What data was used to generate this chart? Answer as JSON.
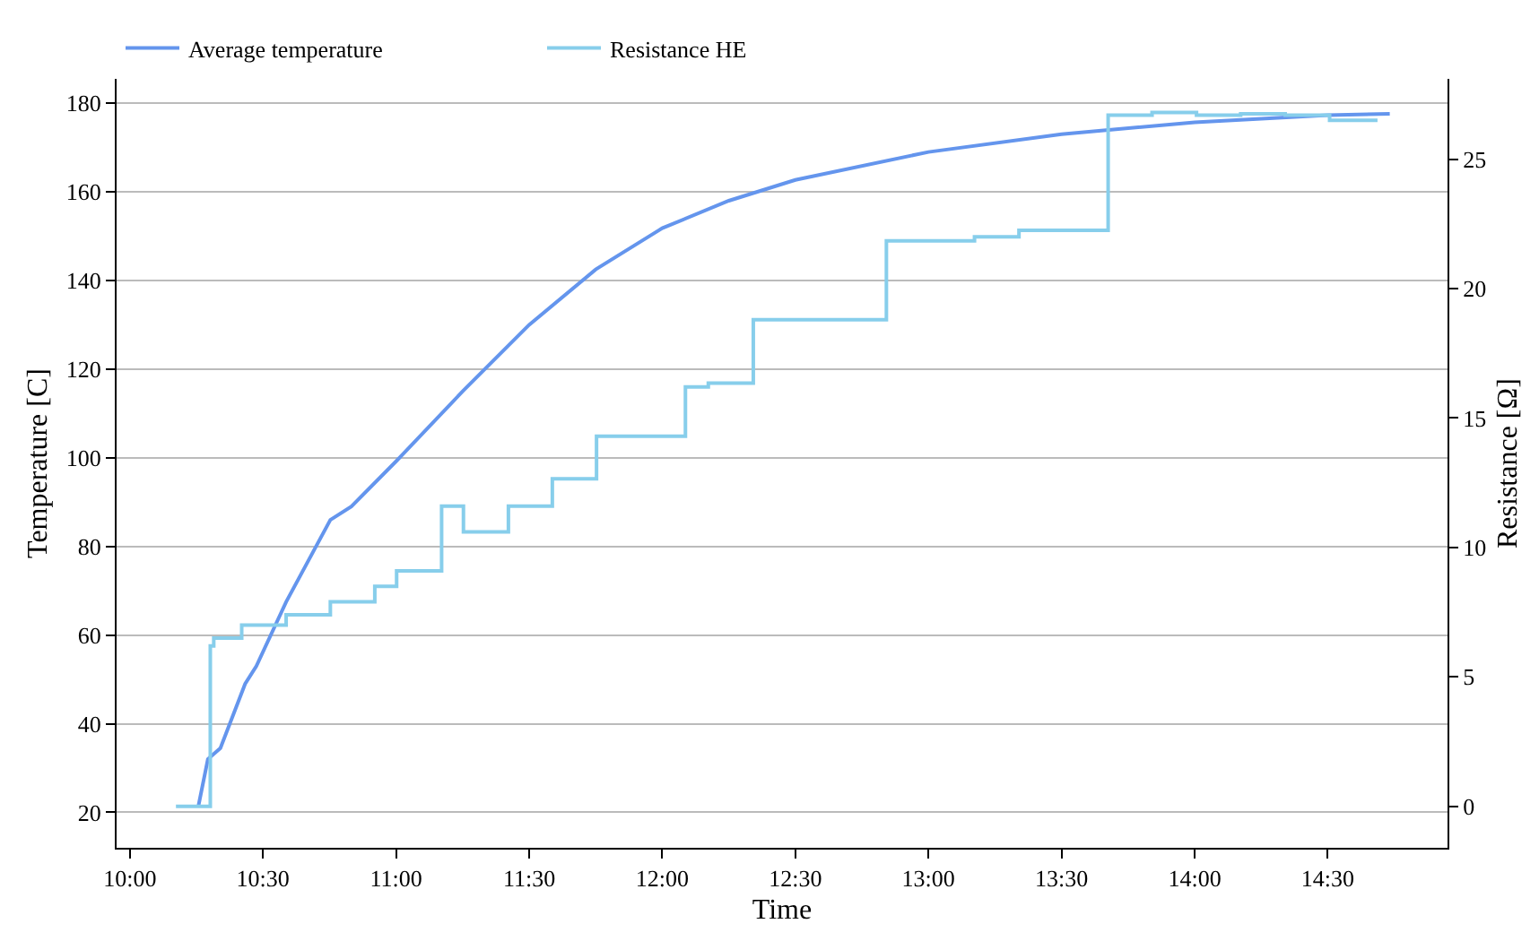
{
  "chart_data": {
    "type": "line",
    "xlabel": "Time",
    "ylabel": "Temperature [C]",
    "y2label": "Resistance [Ω]",
    "xlim": [
      9.95,
      14.95
    ],
    "xticks": [
      {
        "value": 10,
        "label": "10:00"
      },
      {
        "value": 10.5,
        "label": "10:30"
      },
      {
        "value": 11,
        "label": "11:00"
      },
      {
        "value": 11.5,
        "label": "11:30"
      },
      {
        "value": 12,
        "label": "12:00"
      },
      {
        "value": 12.5,
        "label": "12:30"
      },
      {
        "value": 13,
        "label": "13:00"
      },
      {
        "value": 13.5,
        "label": "13:30"
      },
      {
        "value": 14,
        "label": "14:00"
      },
      {
        "value": 14.5,
        "label": "14:30"
      }
    ],
    "ylim": [
      12,
      185.5
    ],
    "yticks": [
      20,
      40,
      60,
      80,
      100,
      120,
      140,
      160,
      180
    ],
    "y2lim": [
      -1.6,
      28.1
    ],
    "y2ticks": [
      0,
      5,
      10,
      15,
      20,
      25
    ],
    "grid": "y",
    "legend": "top left",
    "series": [
      {
        "name": "Average temperature",
        "color": "#6495ed",
        "x": [
          10.258,
          10.293,
          10.34,
          10.433,
          10.475,
          10.587,
          10.753,
          10.832,
          11.0,
          11.25,
          11.5,
          11.75,
          12.0,
          12.25,
          12.5,
          13.0,
          13.5,
          14.0,
          14.5,
          14.733
        ],
        "values": [
          21.6,
          32,
          34.5,
          49,
          53,
          67.5,
          86,
          89,
          99.2,
          115,
          130,
          142.5,
          151.8,
          158,
          162.7,
          169,
          173,
          175.7,
          177.3,
          177.6
        ]
      },
      {
        "name": "Resistance HE",
        "color": "#87ceeb",
        "type": "step",
        "axis": "y2",
        "x": [
          10.173,
          10.302,
          10.315,
          10.42,
          10.587,
          10.753,
          10.92,
          11.002,
          11.171,
          11.253,
          11.422,
          11.587,
          11.753,
          12.087,
          12.173,
          12.342,
          12.842,
          13.173,
          13.34,
          13.675,
          13.84,
          14.007,
          14.173,
          14.34,
          14.507,
          14.687
        ],
        "values": [
          0,
          6.2,
          6.5,
          7.0,
          7.4,
          7.9,
          8.5,
          9.1,
          11.6,
          10.6,
          11.6,
          12.65,
          14.3,
          16.2,
          16.35,
          18.8,
          21.84,
          22.0,
          22.25,
          26.7,
          26.8,
          26.7,
          26.75,
          26.7,
          26.5,
          26.5
        ]
      }
    ]
  }
}
